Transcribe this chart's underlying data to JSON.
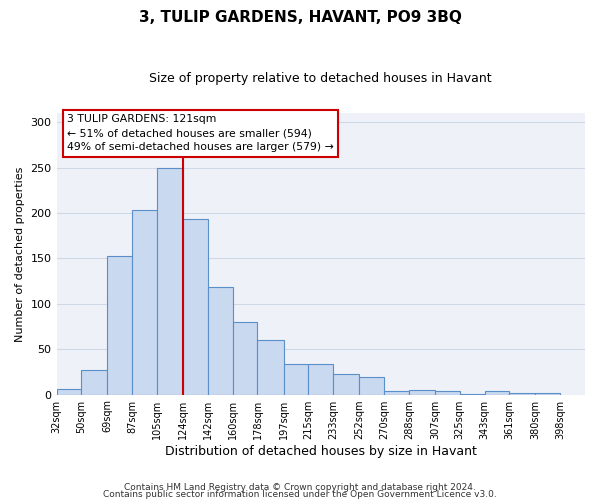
{
  "title": "3, TULIP GARDENS, HAVANT, PO9 3BQ",
  "subtitle": "Size of property relative to detached houses in Havant",
  "xlabel": "Distribution of detached houses by size in Havant",
  "ylabel": "Number of detached properties",
  "bar_left_edges": [
    32,
    50,
    69,
    87,
    105,
    124,
    142,
    160,
    178,
    197,
    215,
    233,
    252,
    270,
    288,
    307,
    325,
    343,
    361,
    380
  ],
  "bar_heights": [
    6,
    27,
    153,
    203,
    250,
    193,
    118,
    80,
    60,
    34,
    34,
    23,
    19,
    4,
    5,
    4,
    1,
    4,
    2,
    2
  ],
  "bar_widths": [
    18,
    19,
    18,
    18,
    19,
    18,
    18,
    18,
    19,
    18,
    18,
    19,
    18,
    18,
    19,
    18,
    18,
    18,
    19,
    18
  ],
  "tick_labels": [
    "32sqm",
    "50sqm",
    "69sqm",
    "87sqm",
    "105sqm",
    "124sqm",
    "142sqm",
    "160sqm",
    "178sqm",
    "197sqm",
    "215sqm",
    "233sqm",
    "252sqm",
    "270sqm",
    "288sqm",
    "307sqm",
    "325sqm",
    "343sqm",
    "361sqm",
    "380sqm",
    "398sqm"
  ],
  "tick_positions": [
    32,
    50,
    69,
    87,
    105,
    124,
    142,
    160,
    178,
    197,
    215,
    233,
    252,
    270,
    288,
    307,
    325,
    343,
    361,
    380,
    398
  ],
  "ylim": [
    0,
    310
  ],
  "yticks": [
    0,
    50,
    100,
    150,
    200,
    250,
    300
  ],
  "bar_fill_color": "#c9d9f0",
  "bar_edge_color": "#5b8fc9",
  "grid_color": "#d0d8e8",
  "bg_color": "#eef2f8",
  "property_line_x": 124,
  "property_line_color": "#cc0000",
  "annotation_title": "3 TULIP GARDENS: 121sqm",
  "annotation_line1": "← 51% of detached houses are smaller (594)",
  "annotation_line2": "49% of semi-detached houses are larger (579) →",
  "annotation_box_color": "#cc0000",
  "footer_line1": "Contains HM Land Registry data © Crown copyright and database right 2024.",
  "footer_line2": "Contains public sector information licensed under the Open Government Licence v3.0."
}
